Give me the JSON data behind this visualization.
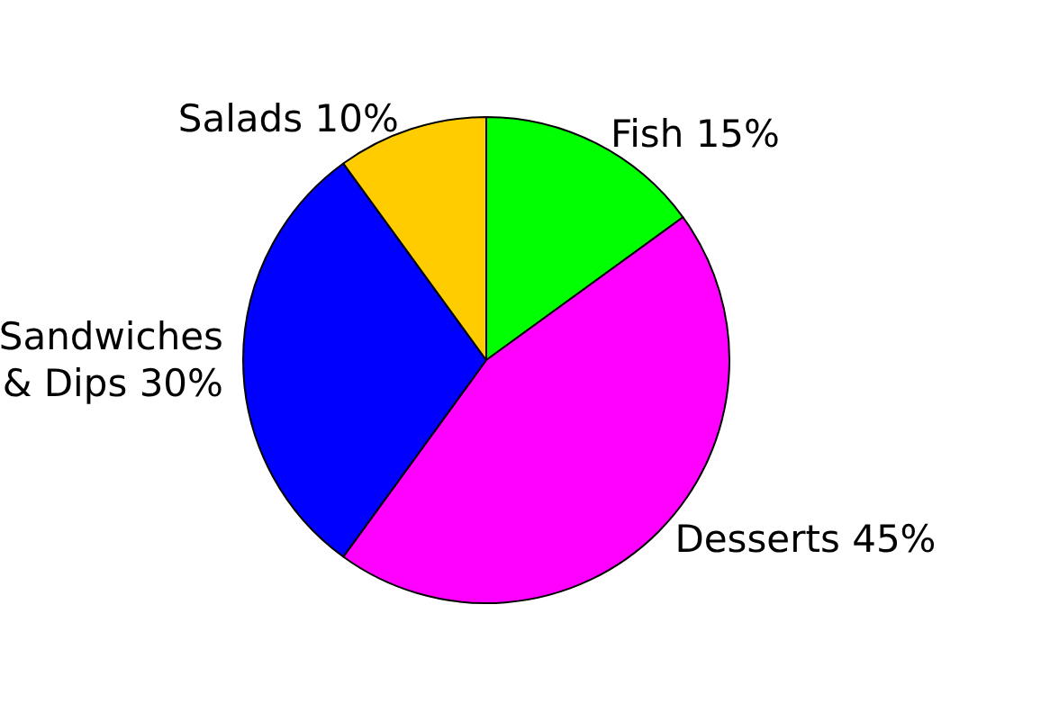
{
  "chart_data": {
    "type": "pie",
    "categories": [
      "Fish",
      "Desserts",
      "Sandwiches & Dips",
      "Salads"
    ],
    "values": [
      15,
      45,
      30,
      10
    ],
    "colors": [
      "#00ff00",
      "#ff00ff",
      "#0000ff",
      "#ffcc00"
    ],
    "value_labels": [
      "15%",
      "45%",
      "30%",
      "10%"
    ],
    "legend": false
  }
}
